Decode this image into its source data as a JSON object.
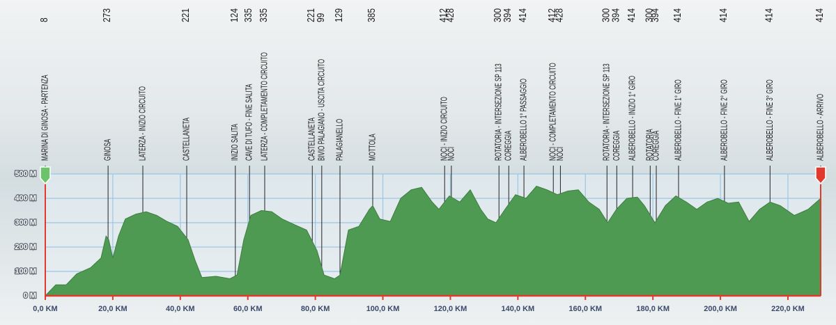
{
  "chart_data": {
    "type": "area",
    "x": [
      0,
      3.1,
      6.2,
      9.3,
      13.4,
      16.5,
      18.0,
      18.8,
      20.0,
      21.7,
      23.7,
      26.8,
      29.9,
      33.0,
      36.1,
      39.2,
      42.3,
      44.4,
      46.4,
      50.6,
      54.7,
      56.8,
      58.8,
      60.9,
      64.0,
      67.1,
      70.2,
      73.3,
      77.4,
      80.5,
      82.6,
      85.7,
      87.3,
      89.8,
      92.9,
      96.0,
      97.0,
      99.1,
      102.2,
      105.3,
      108.4,
      111.5,
      114.6,
      116.6,
      119.7,
      122.8,
      125.9,
      129.0,
      131.1,
      133.5,
      136.2,
      139.3,
      142.4,
      145.5,
      148.6,
      151.7,
      154.8,
      157.9,
      161.0,
      164.1,
      166.6,
      169.2,
      172.3,
      175.4,
      177.5,
      180.6,
      183.7,
      186.8,
      189.9,
      193.0,
      196.1,
      199.2,
      202.3,
      205.4,
      208.5,
      211.6,
      214.7,
      217.7,
      221.9,
      226.0,
      229.7
    ],
    "values": [
      0,
      45,
      45,
      90,
      115,
      155,
      245,
      230,
      155,
      245,
      315,
      335,
      345,
      330,
      305,
      285,
      230,
      145,
      75,
      80,
      70,
      85,
      230,
      330,
      350,
      345,
      315,
      295,
      270,
      185,
      85,
      70,
      85,
      270,
      285,
      355,
      370,
      315,
      305,
      400,
      435,
      445,
      385,
      355,
      410,
      385,
      435,
      355,
      315,
      300,
      355,
      415,
      400,
      450,
      435,
      415,
      430,
      435,
      385,
      355,
      300,
      355,
      400,
      405,
      370,
      300,
      370,
      410,
      385,
      355,
      385,
      400,
      380,
      385,
      305,
      355,
      385,
      370,
      330,
      355,
      400
    ],
    "color": "#4f9a52",
    "axis_color": "#e0392e",
    "start_marker_color": "#6cc46a",
    "end_marker_color": "#e0392e",
    "grid": true,
    "xlim": [
      0,
      229.7
    ],
    "ylim": [
      0,
      500
    ],
    "xticks": [
      {
        "value": 0,
        "label": "0,0 KM"
      },
      {
        "value": 20,
        "label": "20,0 KM"
      },
      {
        "value": 40,
        "label": "40,0 KM"
      },
      {
        "value": 60,
        "label": "60,0 KM"
      },
      {
        "value": 80,
        "label": "80,0 KM"
      },
      {
        "value": 100,
        "label": "100,0 KM"
      },
      {
        "value": 120,
        "label": "120,0 KM"
      },
      {
        "value": 140,
        "label": "140,0 KM"
      },
      {
        "value": 160,
        "label": "160,0 KM"
      },
      {
        "value": 180,
        "label": "180,0 KM"
      },
      {
        "value": 200,
        "label": "200,0 KM"
      },
      {
        "value": 220,
        "label": "220,0 KM"
      }
    ],
    "yticks": [
      {
        "value": 0,
        "label": "0 M"
      },
      {
        "value": 100,
        "label": "100 M"
      },
      {
        "value": 200,
        "label": "200 M"
      },
      {
        "value": 300,
        "label": "300 M"
      },
      {
        "value": 400,
        "label": "400 M"
      },
      {
        "value": 500,
        "label": "500 M"
      }
    ],
    "waypoints": [
      {
        "name": "MARINA DI GINOSA - PARTENZA",
        "km": 0,
        "altitude": 8
      },
      {
        "name": "GINOSA",
        "km": 18.6,
        "altitude": 273
      },
      {
        "name": "LATERZA - INIZIO CIRCUITO",
        "km": 28.9,
        "altitude": null
      },
      {
        "name": "CASTELLANETA",
        "km": 41.9,
        "altitude": 221
      },
      {
        "name": "INIZIO SALITA",
        "km": 56.3,
        "altitude": 124
      },
      {
        "name": "CAVE DI TUFO - FINE SALITA",
        "km": 60.5,
        "altitude": 335
      },
      {
        "name": "LATERZA - COMPLETAMENTO CIRCUITO",
        "km": 65.0,
        "altitude": 335
      },
      {
        "name": "CASTELLANETA",
        "km": 79.1,
        "altitude": 221
      },
      {
        "name": "BIVIO PALAGIANO - USCITA CIRCUITO",
        "km": 81.9,
        "altitude": 99
      },
      {
        "name": "PALAGIANELLO",
        "km": 87.3,
        "altitude": 129
      },
      {
        "name": "MOTTOLA",
        "km": 97.0,
        "altitude": 385
      },
      {
        "name": "NOCI - INIZIO CIRCUITO",
        "km": 118.3,
        "altitude": 412
      },
      {
        "name": "NOCI",
        "km": 120.3,
        "altitude": 428
      },
      {
        "name": "ROTATORIA - INTERSEZIONE SP 113",
        "km": 134.4,
        "altitude": 300
      },
      {
        "name": "COREGGIA",
        "km": 137.3,
        "altitude": 394
      },
      {
        "name": "ALBEROBELLO 1° PASSAGGIO",
        "km": 141.8,
        "altitude": 414
      },
      {
        "name": "NOCI - COMPLETAMENTO CIRCUITO",
        "km": 150.5,
        "altitude": 412
      },
      {
        "name": "NOCI",
        "km": 152.6,
        "altitude": 428
      },
      {
        "name": "ROTATORIA - INTERSEZIONE SP 113",
        "km": 166.4,
        "altitude": 300
      },
      {
        "name": "COREGGIA",
        "km": 169.3,
        "altitude": 394
      },
      {
        "name": "ALBEROBELLO - INIZIO 1° GIRO",
        "km": 174.0,
        "altitude": 414
      },
      {
        "name": "ROTATORIA",
        "km": 179.2,
        "altitude": 300
      },
      {
        "name": "COREGGIA",
        "km": 181.0,
        "altitude": 394
      },
      {
        "name": "ALBEROBELLO - FINE 1° GIRO",
        "km": 187.6,
        "altitude": 414
      },
      {
        "name": "ALBEROBELLO - FINE 2° GIRO",
        "km": 201.2,
        "altitude": 414
      },
      {
        "name": "ALBEROBELLO - FINE 3° GIRO",
        "km": 214.7,
        "altitude": 414
      },
      {
        "name": "ALBEROBELLO - ARRIVO",
        "km": 229.7,
        "altitude": 414
      }
    ]
  }
}
